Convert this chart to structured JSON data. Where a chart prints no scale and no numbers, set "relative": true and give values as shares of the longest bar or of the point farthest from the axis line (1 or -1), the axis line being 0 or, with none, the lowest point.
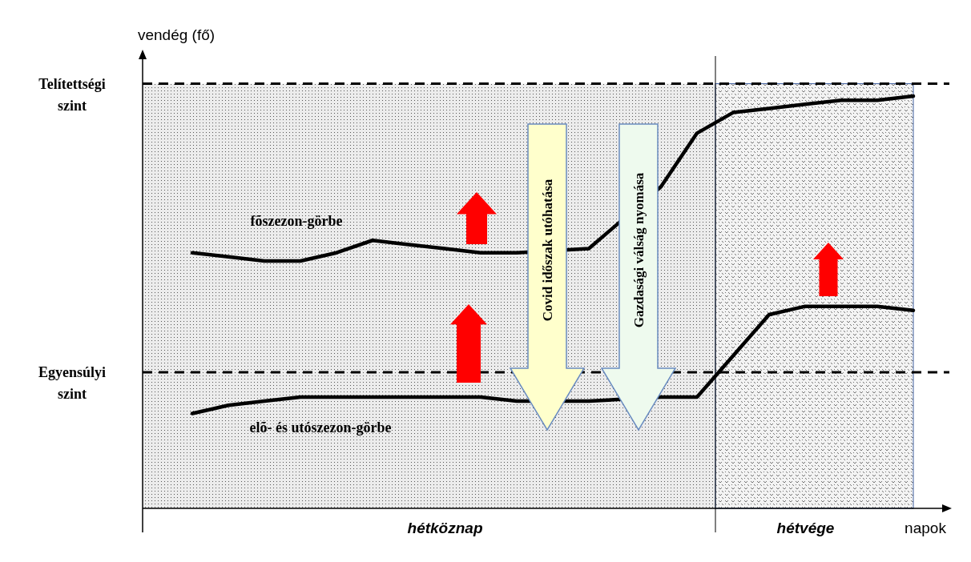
{
  "chart_data": {
    "type": "line",
    "relative": true,
    "ylabel": "vendég (fő)",
    "xlabel": "napok",
    "categories": [
      null,
      null,
      null,
      null,
      null,
      null,
      null,
      "hétköznap",
      null,
      null,
      null,
      null,
      null,
      null,
      null,
      null,
      null,
      "hétvége",
      null,
      null,
      null
    ],
    "series": [
      {
        "name": "fõszezon-görbe",
        "color": "#000000",
        "values": [
          0.62,
          0.61,
          0.6,
          0.6,
          0.62,
          0.65,
          0.64,
          0.63,
          0.62,
          0.62,
          null,
          0.63,
          null,
          0.78,
          0.91,
          0.96,
          0.97,
          0.98,
          0.99,
          0.99,
          1.0
        ]
      },
      {
        "name": "elõ- és utószezon-görbe",
        "color": "#000000",
        "values": [
          0.23,
          0.25,
          0.26,
          0.27,
          0.27,
          0.27,
          0.27,
          0.27,
          0.27,
          0.26,
          null,
          0.26,
          null,
          0.27,
          0.27,
          0.37,
          0.47,
          0.49,
          0.49,
          0.49,
          0.48
        ]
      }
    ],
    "ref_lines": [
      {
        "axis": "y",
        "value": 1.03,
        "label": "Telítettségi szint",
        "color": "#000000",
        "line_style": "dashed"
      },
      {
        "axis": "y",
        "value": 0.33,
        "label": "Egyensúlyi szint",
        "color": "#000000",
        "line_style": "dashed"
      }
    ],
    "annotations": [
      "Covid időszak utóhatása",
      "Gazdasági válság nyomása"
    ]
  }
}
